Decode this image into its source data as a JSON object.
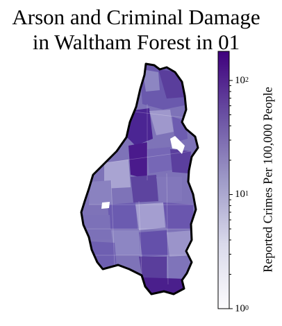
{
  "map": {
    "title_line_1": "Arson and Criminal Damage",
    "title_line_2": "in Waltham Forest in 01",
    "boundary_color": "#000000",
    "missing_data_color": "#ffffff"
  },
  "colorbar": {
    "label": "Reported Crimes Per 100,000 People",
    "scale": "log",
    "range": [
      1,
      180
    ],
    "colormap": "Purples",
    "color_low": "#fcfbfd",
    "color_high": "#3f007d",
    "ticks": [
      {
        "base": "10",
        "exp": "2",
        "value": 100
      },
      {
        "base": "10",
        "exp": "1",
        "value": 10
      },
      {
        "base": "10",
        "exp": "0",
        "value": 1
      }
    ]
  }
}
